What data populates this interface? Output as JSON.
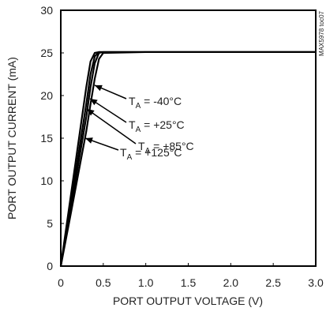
{
  "chart_data": {
    "type": "line",
    "xlabel": "PORT OUTPUT VOLTAGE (V)",
    "ylabel": "PORT OUTPUT CURRENT (mA)",
    "watermark": "MAX5978 toc07",
    "x": [
      0,
      0.1,
      0.2,
      0.3,
      0.35,
      0.4,
      0.45,
      0.5,
      1.0,
      1.5,
      2.0,
      2.5,
      3.0
    ],
    "series": [
      {
        "name": "TA = -40°C",
        "color": "#000000",
        "values": [
          0,
          7,
          14,
          21,
          24,
          25,
          25.1,
          25.1,
          25.1,
          25.1,
          25.1,
          25.1,
          25.1
        ]
      },
      {
        "name": "TA = +25°C",
        "color": "#000000",
        "values": [
          0,
          6.3,
          12.6,
          19,
          22.5,
          24.6,
          25.1,
          25.1,
          25.1,
          25.1,
          25.1,
          25.1,
          25.1
        ]
      },
      {
        "name": "TA = +85°C",
        "color": "#000000",
        "values": [
          0,
          5.8,
          11.6,
          17.5,
          21,
          23.8,
          25,
          25.1,
          25.1,
          25.1,
          25.1,
          25.1,
          25.1
        ]
      },
      {
        "name": "TA = +125°C",
        "color": "#000000",
        "values": [
          0,
          5.2,
          10.5,
          15.8,
          19,
          22,
          24.3,
          25,
          25.1,
          25.1,
          25.1,
          25.1,
          25.1
        ]
      }
    ],
    "xlim": [
      0,
      3
    ],
    "xticks": [
      0,
      0.5,
      {
        "value": 1,
        "label": "1.0"
      },
      1.5,
      {
        "value": 2,
        "label": "2.0"
      },
      2.5,
      {
        "value": 3,
        "label": "3.0"
      }
    ],
    "ylim": [
      0,
      30
    ],
    "yticks": [
      0,
      5,
      10,
      15,
      20,
      25,
      30
    ],
    "grid": false
  }
}
